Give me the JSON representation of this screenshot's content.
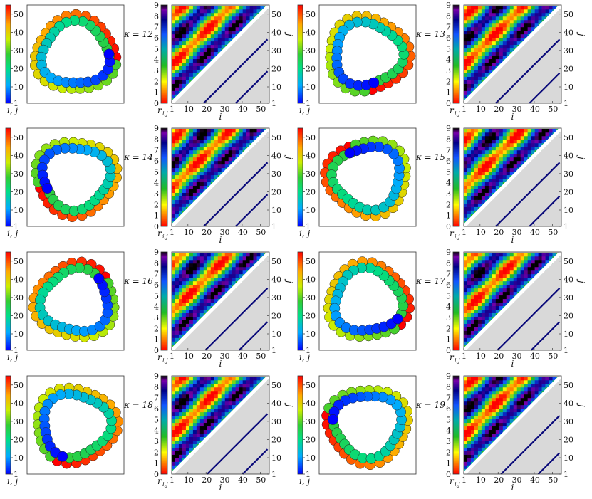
{
  "colors": {
    "frame": "#333333",
    "lower_bg": "#d9d9d9",
    "contact": "#0a0a7a",
    "bead_stroke": "#222222"
  },
  "labels": {
    "colorbar_beads": "i, j",
    "colorbar_map": "r",
    "colorbar_map_sub": "i,j",
    "x_axis": "i",
    "y_axis": "j"
  },
  "chart_data": [
    {
      "type": "heatmap",
      "kappa_label": "κ = 12",
      "n_beads": 55,
      "bead_colorbar": {
        "ticks": [
          1,
          10,
          20,
          30,
          40,
          50
        ],
        "range": [
          1,
          55
        ]
      },
      "distance_colorbar": {
        "ticks": [
          0,
          1,
          2,
          3,
          4,
          5,
          6,
          7,
          8,
          9
        ],
        "range": [
          0,
          9
        ]
      },
      "x_ticks": [
        1,
        10,
        20,
        30,
        40,
        50
      ],
      "y_ticks": [
        1,
        10,
        20,
        30,
        40,
        50
      ],
      "xlabel": "i",
      "ylabel": "j",
      "contact_bands_offset": [
        18,
        36,
        54
      ]
    },
    {
      "type": "heatmap",
      "kappa_label": "κ = 13",
      "n_beads": 55,
      "bead_colorbar": {
        "ticks": [
          1,
          10,
          20,
          30,
          40,
          50
        ],
        "range": [
          1,
          55
        ]
      },
      "distance_colorbar": {
        "ticks": [
          0,
          1,
          2,
          3,
          4,
          5,
          6,
          7,
          8,
          9
        ],
        "range": [
          0,
          9
        ]
      },
      "x_ticks": [
        1,
        10,
        20,
        30,
        40,
        50
      ],
      "y_ticks": [
        1,
        10,
        20,
        30,
        40,
        50
      ],
      "xlabel": "i",
      "ylabel": "j",
      "contact_bands_offset": [
        18,
        37
      ]
    },
    {
      "type": "heatmap",
      "kappa_label": "κ = 14",
      "n_beads": 55,
      "bead_colorbar": {
        "ticks": [
          1,
          10,
          20,
          30,
          40,
          50
        ],
        "range": [
          1,
          55
        ]
      },
      "distance_colorbar": {
        "ticks": [
          0,
          1,
          2,
          3,
          4,
          5,
          6,
          7,
          8,
          9
        ],
        "range": [
          0,
          9
        ]
      },
      "x_ticks": [
        1,
        10,
        20,
        30,
        40,
        50
      ],
      "y_ticks": [
        1,
        10,
        20,
        30,
        40,
        50
      ],
      "xlabel": "i",
      "ylabel": "j",
      "contact_bands_offset": [
        18,
        36,
        54
      ]
    },
    {
      "type": "heatmap",
      "kappa_label": "κ = 15",
      "n_beads": 55,
      "bead_colorbar": {
        "ticks": [
          1,
          10,
          20,
          30,
          40,
          50
        ],
        "range": [
          1,
          55
        ]
      },
      "distance_colorbar": {
        "ticks": [
          0,
          1,
          2,
          3,
          4,
          5,
          6,
          7,
          8,
          9
        ],
        "range": [
          0,
          9
        ]
      },
      "x_ticks": [
        1,
        10,
        20,
        30,
        40,
        50
      ],
      "y_ticks": [
        1,
        10,
        20,
        30,
        40,
        50
      ],
      "xlabel": "i",
      "ylabel": "j",
      "contact_bands_offset": [
        18,
        37
      ]
    },
    {
      "type": "heatmap",
      "kappa_label": "κ = 16",
      "n_beads": 55,
      "bead_colorbar": {
        "ticks": [
          1,
          10,
          20,
          30,
          40,
          50
        ],
        "range": [
          1,
          55
        ]
      },
      "distance_colorbar": {
        "ticks": [
          0,
          1,
          2,
          3,
          4,
          5,
          6,
          7,
          8,
          9
        ],
        "range": [
          0,
          9
        ]
      },
      "x_ticks": [
        1,
        10,
        20,
        30,
        40,
        50
      ],
      "y_ticks": [
        1,
        10,
        20,
        30,
        40,
        50
      ],
      "xlabel": "i",
      "ylabel": "j",
      "contact_bands_offset": [
        19,
        38
      ]
    },
    {
      "type": "heatmap",
      "kappa_label": "κ = 17",
      "n_beads": 55,
      "bead_colorbar": {
        "ticks": [
          1,
          10,
          20,
          30,
          40,
          50
        ],
        "range": [
          1,
          55
        ]
      },
      "distance_colorbar": {
        "ticks": [
          0,
          1,
          2,
          3,
          4,
          5,
          6,
          7,
          8,
          9
        ],
        "range": [
          0,
          9
        ]
      },
      "x_ticks": [
        1,
        10,
        20,
        30,
        40,
        50
      ],
      "y_ticks": [
        1,
        10,
        20,
        30,
        40,
        50
      ],
      "xlabel": "i",
      "ylabel": "j",
      "contact_bands_offset": [
        19,
        38
      ]
    },
    {
      "type": "heatmap",
      "kappa_label": "κ = 18",
      "n_beads": 55,
      "bead_colorbar": {
        "ticks": [
          1,
          10,
          20,
          30,
          40,
          50
        ],
        "range": [
          1,
          55
        ]
      },
      "distance_colorbar": {
        "ticks": [
          0,
          1,
          2,
          3,
          4,
          5,
          6,
          7,
          8,
          9
        ],
        "range": [
          0,
          9
        ]
      },
      "x_ticks": [
        1,
        10,
        20,
        30,
        40,
        50
      ],
      "y_ticks": [
        1,
        10,
        20,
        30,
        40,
        50
      ],
      "xlabel": "i",
      "ylabel": "j",
      "contact_bands_offset": [
        20,
        40
      ]
    },
    {
      "type": "heatmap",
      "kappa_label": "κ = 19",
      "n_beads": 55,
      "bead_colorbar": {
        "ticks": [
          1,
          10,
          20,
          30,
          40,
          50
        ],
        "range": [
          1,
          55
        ]
      },
      "distance_colorbar": {
        "ticks": [
          0,
          1,
          2,
          3,
          4,
          5,
          6,
          7,
          8,
          9
        ],
        "range": [
          0,
          9
        ]
      },
      "x_ticks": [
        1,
        10,
        20,
        30,
        40,
        50
      ],
      "y_ticks": [
        1,
        10,
        20,
        30,
        40,
        50
      ],
      "xlabel": "i",
      "ylabel": "j",
      "contact_bands_offset": [
        21,
        42
      ]
    }
  ]
}
